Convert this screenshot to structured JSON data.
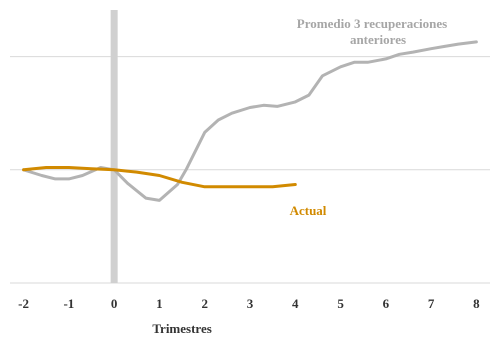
{
  "chart_data": {
    "type": "line",
    "title": "",
    "xlabel": "Trimestres",
    "ylabel": "",
    "xlim": [
      -2.3,
      8.3
    ],
    "ylim": [
      -1.0,
      1.5
    ],
    "x_ticks": [
      -2,
      -1,
      0,
      1,
      2,
      3,
      4,
      5,
      6,
      7,
      8
    ],
    "x_tick_labels": [
      "-2",
      "-1",
      "0",
      "1",
      "2",
      "3",
      "4",
      "5",
      "6",
      "7",
      "8"
    ],
    "y_gridlines": [
      -1.0,
      0.0,
      1.0
    ],
    "grid": true,
    "legend": "none",
    "vertical_marker_x": 0,
    "series": [
      {
        "name": "Promedio 3 recuperaciones anteriores",
        "label_lines": [
          "Promedio 3 recuperaciones",
          "anteriores"
        ],
        "color": "#b3b3b3",
        "x": [
          -2,
          -1.6,
          -1.3,
          -1,
          -0.7,
          -0.3,
          0,
          0.3,
          0.7,
          1,
          1.2,
          1.4,
          1.6,
          2,
          2.3,
          2.6,
          3,
          3.3,
          3.6,
          4,
          4.3,
          4.6,
          5,
          5.3,
          5.6,
          6,
          6.3,
          6.6,
          7,
          7.3,
          7.6,
          8
        ],
        "y": [
          0.0,
          -0.05,
          -0.08,
          -0.08,
          -0.05,
          0.02,
          0.0,
          -0.12,
          -0.25,
          -0.27,
          -0.2,
          -0.13,
          0.01,
          0.33,
          0.44,
          0.5,
          0.55,
          0.57,
          0.56,
          0.6,
          0.66,
          0.83,
          0.91,
          0.95,
          0.95,
          0.98,
          1.02,
          1.04,
          1.07,
          1.09,
          1.11,
          1.13
        ]
      },
      {
        "name": "Actual",
        "label_lines": [
          "Actual"
        ],
        "color": "#d18a00",
        "x": [
          -2,
          -1.5,
          -1,
          -0.5,
          0,
          0.5,
          1,
          1.5,
          2,
          2.5,
          3,
          3.5,
          4
        ],
        "y": [
          0.0,
          0.02,
          0.02,
          0.01,
          0.0,
          -0.02,
          -0.05,
          -0.11,
          -0.15,
          -0.15,
          -0.15,
          -0.15,
          -0.13
        ]
      }
    ]
  }
}
